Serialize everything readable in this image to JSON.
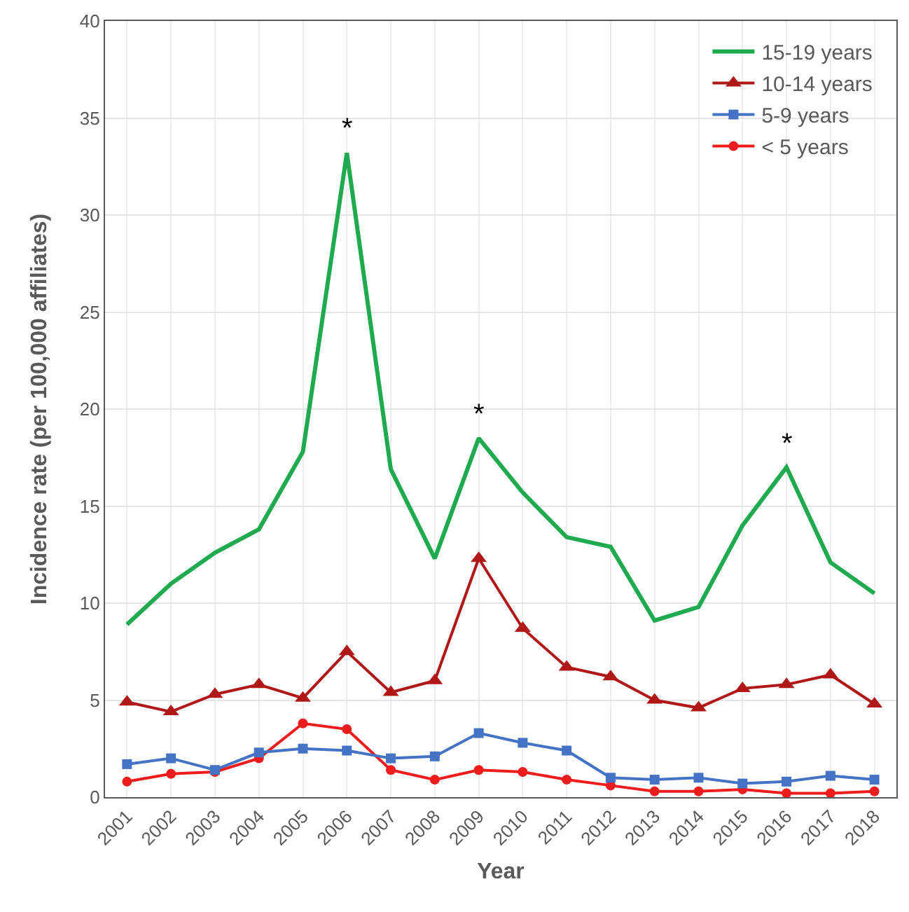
{
  "chart_data": {
    "type": "line",
    "xlabel": "Year",
    "ylabel": "Incidence rate (per 100,000 affiliates)",
    "categories": [
      "2001",
      "2002",
      "2003",
      "2004",
      "2005",
      "2006",
      "2007",
      "2008",
      "2009",
      "2010",
      "2011",
      "2012",
      "2013",
      "2014",
      "2015",
      "2016",
      "2017",
      "2018"
    ],
    "series": [
      {
        "name": "15-19 years",
        "color": "#1faa4f",
        "marker": "none",
        "values": [
          8.9,
          11.0,
          12.6,
          13.8,
          17.8,
          33.2,
          16.9,
          12.3,
          18.5,
          15.7,
          13.4,
          12.9,
          9.1,
          9.8,
          14.0,
          17.0,
          12.1,
          10.5
        ]
      },
      {
        "name": "10-14 years",
        "color": "#b01818",
        "marker": "triangle",
        "values": [
          4.9,
          4.4,
          5.3,
          5.8,
          5.1,
          7.5,
          5.4,
          6.0,
          12.3,
          8.7,
          6.7,
          6.2,
          5.0,
          4.6,
          5.6,
          5.8,
          6.3,
          4.8
        ]
      },
      {
        "name": "5-9 years",
        "color": "#4472c4",
        "marker": "square",
        "values": [
          1.7,
          2.0,
          1.4,
          2.3,
          2.5,
          2.4,
          2.0,
          2.1,
          3.3,
          2.8,
          2.4,
          1.0,
          0.9,
          1.0,
          0.7,
          0.8,
          1.1,
          0.9
        ]
      },
      {
        "name": "< 5 years",
        "color": "#ee1c1c",
        "marker": "circle",
        "values": [
          0.8,
          1.2,
          1.3,
          2.0,
          3.8,
          3.5,
          1.4,
          0.9,
          1.4,
          1.3,
          0.9,
          0.6,
          0.3,
          0.3,
          0.4,
          0.2,
          0.2,
          0.3
        ]
      }
    ],
    "annotations": [
      {
        "text": "*",
        "x": "2006",
        "y": 33.2
      },
      {
        "text": "*",
        "x": "2009",
        "y": 18.5
      },
      {
        "text": "*",
        "x": "2016",
        "y": 17.0
      }
    ],
    "ylim": [
      0,
      40
    ],
    "yticks": [
      0,
      5,
      10,
      15,
      20,
      25,
      30,
      35,
      40
    ],
    "grid": true,
    "legend": "top right",
    "line_style": "solid"
  }
}
